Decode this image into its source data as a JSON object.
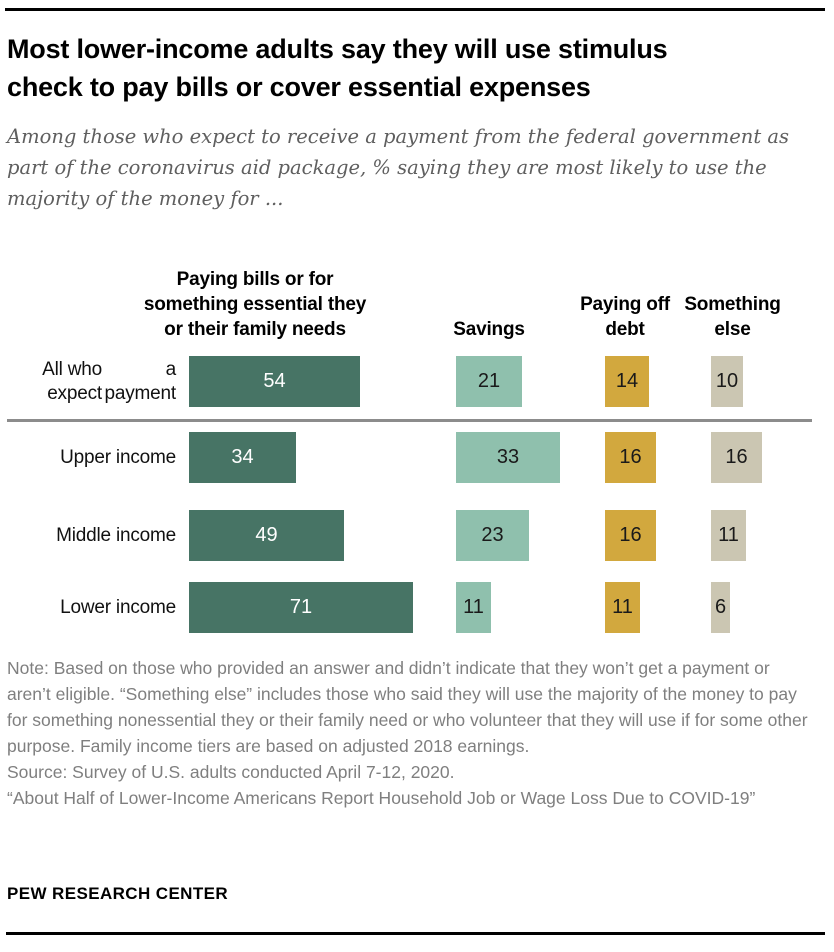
{
  "header": {
    "title_lines": [
      "Most lower-income adults say they will use stimulus",
      "check to pay bills or cover essential expenses"
    ],
    "subtitle": "Among those who expect to receive a payment from the federal government as part of the coronavirus aid package, % saying they are most likely to use the majority of the money for ..."
  },
  "colors": {
    "dark_teal": "#477465",
    "light_teal": "#8FC0AD",
    "gold": "#D2A83E",
    "tan": "#CBC6B2",
    "divider_gray": "#8C8C8C"
  },
  "chart_data": {
    "type": "bar",
    "orientation": "horizontal",
    "unit": "%",
    "categories": [
      "All who expect a payment",
      "Upper income",
      "Middle income",
      "Lower income"
    ],
    "row_label_lines": [
      [
        "All who expect",
        "a payment"
      ],
      [
        "Upper income"
      ],
      [
        "Middle income"
      ],
      [
        "Lower income"
      ]
    ],
    "series": [
      {
        "name": "Paying bills or for something essential they or their family needs",
        "color": "#477465",
        "value_text_color": "#ffffff",
        "values": [
          54,
          34,
          49,
          71
        ]
      },
      {
        "name": "Savings",
        "color": "#8FC0AD",
        "value_text_color": "#1a1a1a",
        "values": [
          21,
          33,
          23,
          11
        ]
      },
      {
        "name": "Paying off debt",
        "color": "#D2A83E",
        "value_text_color": "#1a1a1a",
        "values": [
          14,
          16,
          16,
          11
        ]
      },
      {
        "name": "Something else",
        "color": "#CBC6B2",
        "value_text_color": "#1a1a1a",
        "values": [
          10,
          16,
          11,
          6
        ]
      }
    ],
    "axis_range": [
      0,
      100
    ],
    "gridlines": false,
    "legend": "column headers above bars",
    "group_divider_after_row": 0
  },
  "footer": {
    "note": "Note: Based on those who provided an answer and didn’t indicate that they won’t get a payment or aren’t eligible. “Something else” includes those who said they will use the majority of the money to pay for something nonessential they or their family need or who volunteer that they will use if for some other purpose. Family income tiers are based on adjusted 2018 earnings.",
    "source": "Source: Survey of U.S. adults conducted April 7-12, 2020.",
    "citation": "“About Half of Lower-Income Americans Report Household Job or Wage Loss Due to COVID-19”",
    "brand": "PEW RESEARCH CENTER"
  }
}
